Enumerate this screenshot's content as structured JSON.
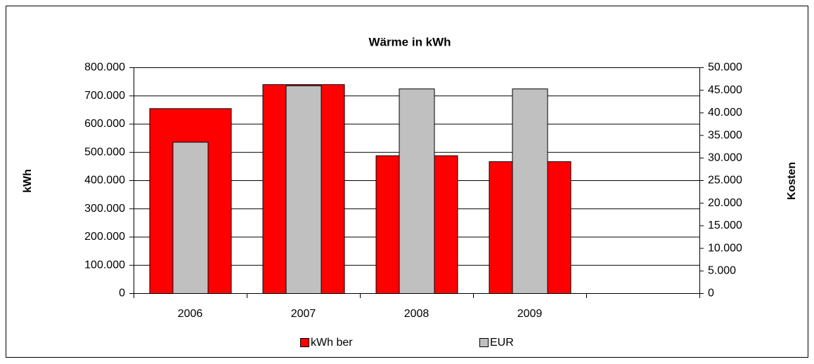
{
  "chart_data": {
    "type": "bar",
    "title": "Wärme in kWh",
    "ylabel": "kWh",
    "y2label": "Kosten",
    "categories": [
      "2006",
      "2007",
      "2008",
      "2009",
      null
    ],
    "series": [
      {
        "name": "kWh ber",
        "color": "#ff0000",
        "values": [
          655000,
          740000,
          488000,
          467000,
          null
        ]
      },
      {
        "name": "EUR",
        "color": "#c0c0c0",
        "axis": "y2",
        "values": [
          33500,
          46000,
          45300,
          45300,
          null
        ]
      }
    ],
    "ylim": [
      0,
      800000
    ],
    "yticks": [
      0,
      {
        "value": 100000,
        "label": "100.000"
      },
      {
        "value": 200000,
        "label": "200.000"
      },
      {
        "value": 300000,
        "label": "300.000"
      },
      {
        "value": 400000,
        "label": "400.000"
      },
      {
        "value": 500000,
        "label": "500.000"
      },
      {
        "value": 600000,
        "label": "600.000"
      },
      {
        "value": 700000,
        "label": "700.000"
      },
      {
        "value": 800000,
        "label": "800.000"
      }
    ],
    "y2lim": [
      0,
      50000
    ],
    "y2ticks": [
      0,
      {
        "value": 5000,
        "label": "5.000"
      },
      {
        "value": 10000,
        "label": "10.000"
      },
      {
        "value": 15000,
        "label": "15.000"
      },
      {
        "value": 20000,
        "label": "20.000"
      },
      {
        "value": 25000,
        "label": "25.000"
      },
      {
        "value": 30000,
        "label": "30.000"
      },
      {
        "value": 35000,
        "label": "35.000"
      },
      {
        "value": 40000,
        "label": "40.000"
      },
      {
        "value": 45000,
        "label": "45.000"
      },
      {
        "value": 50000,
        "label": "50.000"
      }
    ],
    "grid": true,
    "legend": "bottom"
  }
}
